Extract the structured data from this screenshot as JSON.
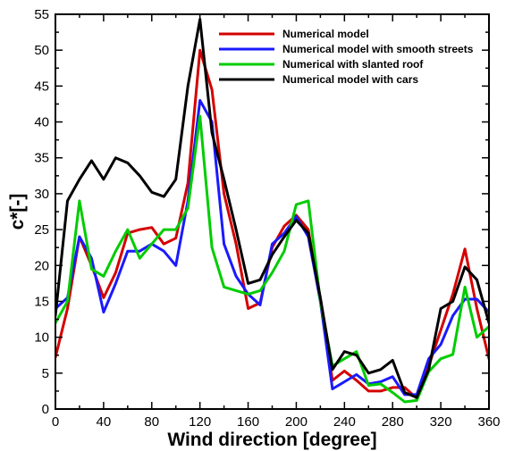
{
  "chart_data": {
    "type": "line",
    "title": "",
    "xlabel": "Wind direction [degree]",
    "ylabel": "c*[-]",
    "xlim": [
      0,
      360
    ],
    "ylim": [
      0,
      55
    ],
    "xticks": [
      0,
      40,
      80,
      120,
      160,
      200,
      240,
      280,
      320,
      360
    ],
    "yticks": [
      0,
      5,
      10,
      15,
      20,
      25,
      30,
      35,
      40,
      45,
      50,
      55
    ],
    "grid": false,
    "legend_position": "top-right",
    "x": [
      0,
      10,
      20,
      30,
      40,
      50,
      60,
      70,
      80,
      90,
      100,
      110,
      120,
      130,
      140,
      150,
      160,
      170,
      180,
      190,
      200,
      210,
      220,
      230,
      240,
      250,
      260,
      270,
      280,
      290,
      300,
      310,
      320,
      330,
      340,
      350,
      360
    ],
    "series": [
      {
        "name": "Numerical model",
        "color": "#d40000",
        "values": [
          7.2,
          14,
          24,
          20,
          15.5,
          19,
          24.5,
          25,
          25.3,
          23,
          23.8,
          31.5,
          50,
          44.5,
          30,
          23,
          14,
          14.8,
          22.5,
          25.5,
          27,
          25,
          15,
          4,
          5.3,
          4,
          2.5,
          2.5,
          3,
          3,
          1.5,
          6,
          11,
          16,
          22.3,
          14,
          7
        ]
      },
      {
        "name": "Numerical model with smooth streets",
        "color": "#1a1aff",
        "values": [
          14,
          15.5,
          24,
          21,
          13.5,
          17.5,
          22,
          22,
          23,
          22,
          20,
          29,
          43,
          40,
          23,
          18.5,
          16,
          14.5,
          23,
          24.5,
          26.8,
          24,
          15,
          2.8,
          3.8,
          4.8,
          3.5,
          3.8,
          4.5,
          2,
          2,
          7,
          9,
          13,
          15.3,
          15.3,
          13.5
        ]
      },
      {
        "name": "Numerical with slanted roof",
        "color": "#00cc00",
        "values": [
          12,
          15,
          29,
          19.5,
          18.5,
          22,
          25,
          21,
          23,
          25,
          25,
          28,
          40.8,
          22.5,
          17,
          16.5,
          16,
          16.5,
          19,
          22,
          28.5,
          29,
          15,
          6,
          7,
          8,
          3.3,
          3.5,
          2.3,
          1,
          1.2,
          5.2,
          7,
          7.6,
          17,
          10,
          11.5
        ]
      },
      {
        "name": "Numerical model with cars",
        "color": "#000000",
        "values": [
          13,
          29,
          32,
          34.6,
          32,
          35,
          34.3,
          32.5,
          30.2,
          29.6,
          32,
          45,
          54.3,
          38.5,
          32,
          25,
          17.5,
          18,
          21.5,
          24,
          26.3,
          24.5,
          15.5,
          5.5,
          8,
          7.5,
          5,
          5.5,
          6.8,
          2.3,
          1.6,
          5.5,
          14,
          15,
          19.8,
          18,
          12
        ]
      }
    ]
  }
}
